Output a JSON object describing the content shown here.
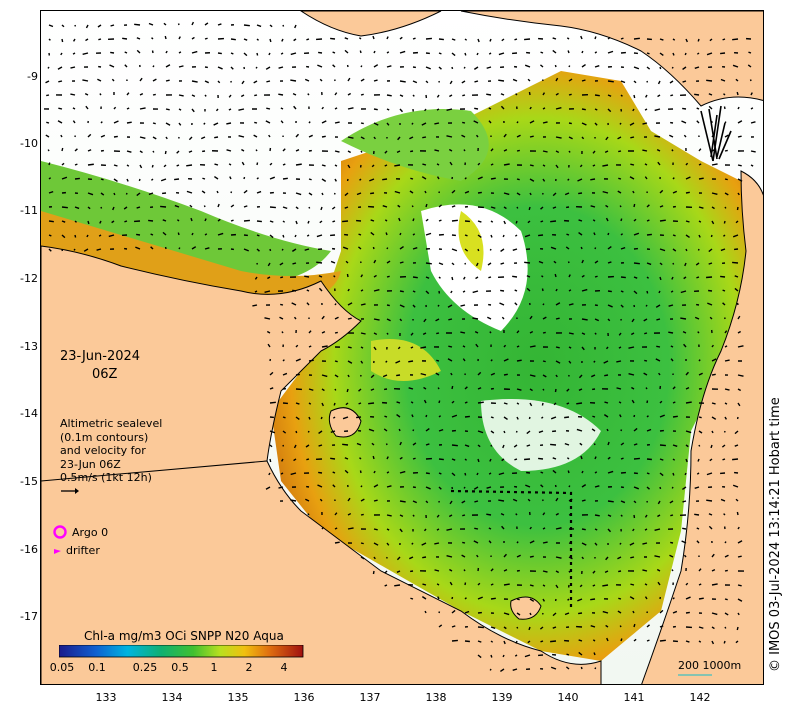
{
  "date": {
    "day": "23-Jun-2024",
    "hour": "06Z"
  },
  "legend": {
    "lines": [
      "Altimetric sealevel",
      "(0.1m contours)",
      "and velocity for",
      "23-Jun 06Z",
      "0.5m/s (1kt 12h)"
    ]
  },
  "markers": {
    "argo": "Argo 0",
    "drifter": "drifter"
  },
  "colorbar": {
    "title": "Chl-a mg/m3 OCi SNPP N20 Aqua",
    "ticks": [
      "0.05",
      "0.1",
      "0.25",
      "0.5",
      "1",
      "2",
      "4"
    ]
  },
  "scale": "200  1000m",
  "credit": "© IMOS 03-Jul-2024 13:14:21 Hobart time",
  "axes": {
    "latitudes": [
      "-9",
      "-10",
      "-11",
      "-12",
      "-13",
      "-14",
      "-15",
      "-16",
      "-17"
    ],
    "longitudes": [
      "133",
      "134",
      "135",
      "136",
      "137",
      "138",
      "139",
      "140",
      "141",
      "142"
    ]
  },
  "colors": {
    "land": "#fbc999",
    "argo": "#ff00ff",
    "drifter": "#ff00ff"
  }
}
